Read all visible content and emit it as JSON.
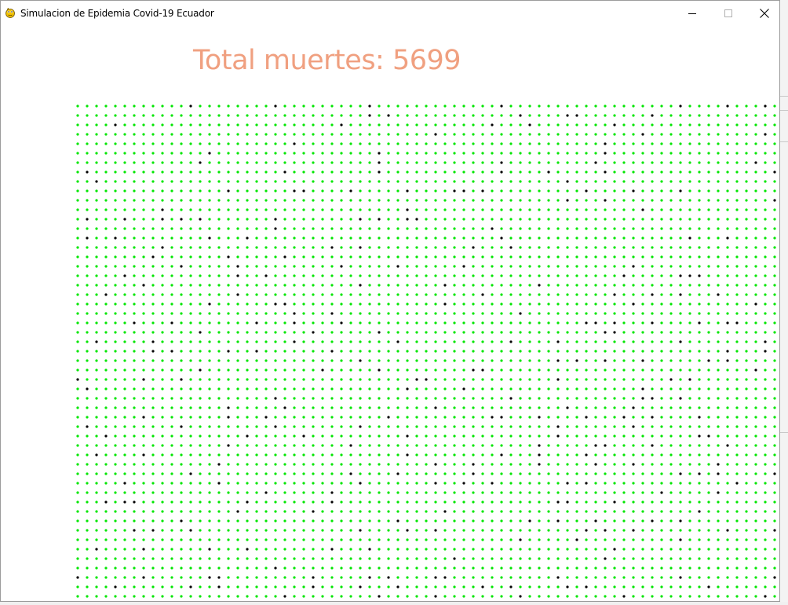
{
  "window": {
    "title": "Simulacion de Epidemia Covid-19 Ecuador",
    "icon": "pygame-snake-icon",
    "controls": [
      "minimize-icon",
      "maximize-icon",
      "close-icon"
    ]
  },
  "simulation": {
    "label": "Total muertes: 5699",
    "label_color": "#f0a080",
    "colors": {
      "healthy": "#00e600",
      "dead": "#000000"
    }
  }
}
